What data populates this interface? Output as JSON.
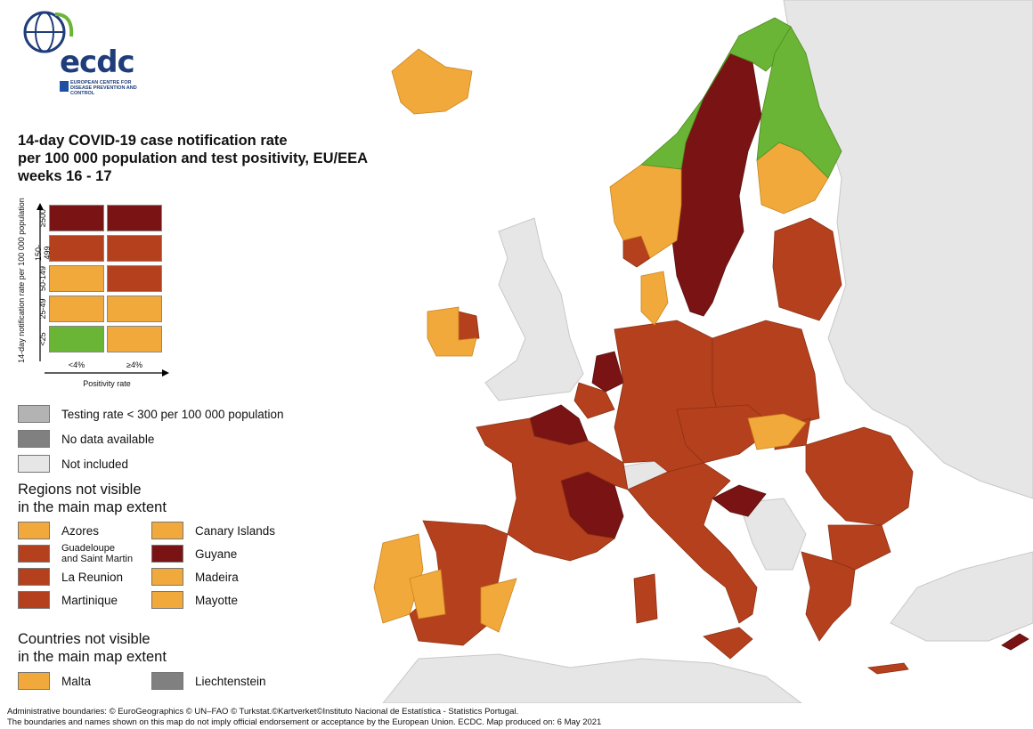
{
  "logo": {
    "wordmark": "ecdc",
    "subtitle": "EUROPEAN CENTRE FOR DISEASE PREVENTION AND CONTROL"
  },
  "title": "14-day COVID-19 case notification rate\nper 100 000 population and test positivity, EU/EEA\nweeks 16 - 17",
  "colors": {
    "dark_red": "#7a1414",
    "red": "#b5401d",
    "orange": "#f2a93b",
    "green": "#6ab535",
    "light_grey": "#b3b3b3",
    "dark_grey": "#808080",
    "not_included": "#e6e6e6"
  },
  "matrix": {
    "y_title": "14-day notification rate per 100 000 population",
    "x_title": "Positivity rate",
    "rows": [
      "≥500",
      "150-499",
      "50-149",
      "25-49",
      "<25"
    ],
    "cols": [
      "<4%",
      "≥4%"
    ],
    "cells": [
      [
        "dark_red",
        "dark_red"
      ],
      [
        "red",
        "red"
      ],
      [
        "orange",
        "red"
      ],
      [
        "orange",
        "orange"
      ],
      [
        "green",
        "orange"
      ]
    ]
  },
  "legend": {
    "testing_rate": "Testing rate < 300 per 100 000 population",
    "no_data": "No data available",
    "not_included": "Not included"
  },
  "regions": {
    "title": "Regions not visible\nin the main map extent",
    "items": [
      {
        "label": "Azores",
        "color": "orange"
      },
      {
        "label": "Canary Islands",
        "color": "orange"
      },
      {
        "label": "Guadeloupe\nand Saint Martin",
        "color": "red"
      },
      {
        "label": "Guyane",
        "color": "dark_red"
      },
      {
        "label": "La Reunion",
        "color": "red"
      },
      {
        "label": "Madeira",
        "color": "orange"
      },
      {
        "label": "Martinique",
        "color": "red"
      },
      {
        "label": "Mayotte",
        "color": "orange"
      }
    ]
  },
  "countries": {
    "title": "Countries not visible\nin the main map extent",
    "items": [
      {
        "label": "Malta",
        "color": "orange"
      },
      {
        "label": "Liechtenstein",
        "color": "dark_grey"
      }
    ]
  },
  "footer": "Administrative boundaries: © EuroGeographics © UN–FAO © Turkstat.©Kartverket©Instituto Nacional de Estatística - Statistics Portugal.\nThe boundaries and names shown on this map do not imply official endorsement or acceptance by the European Union. ECDC. Map produced on: 6 May 2021"
}
